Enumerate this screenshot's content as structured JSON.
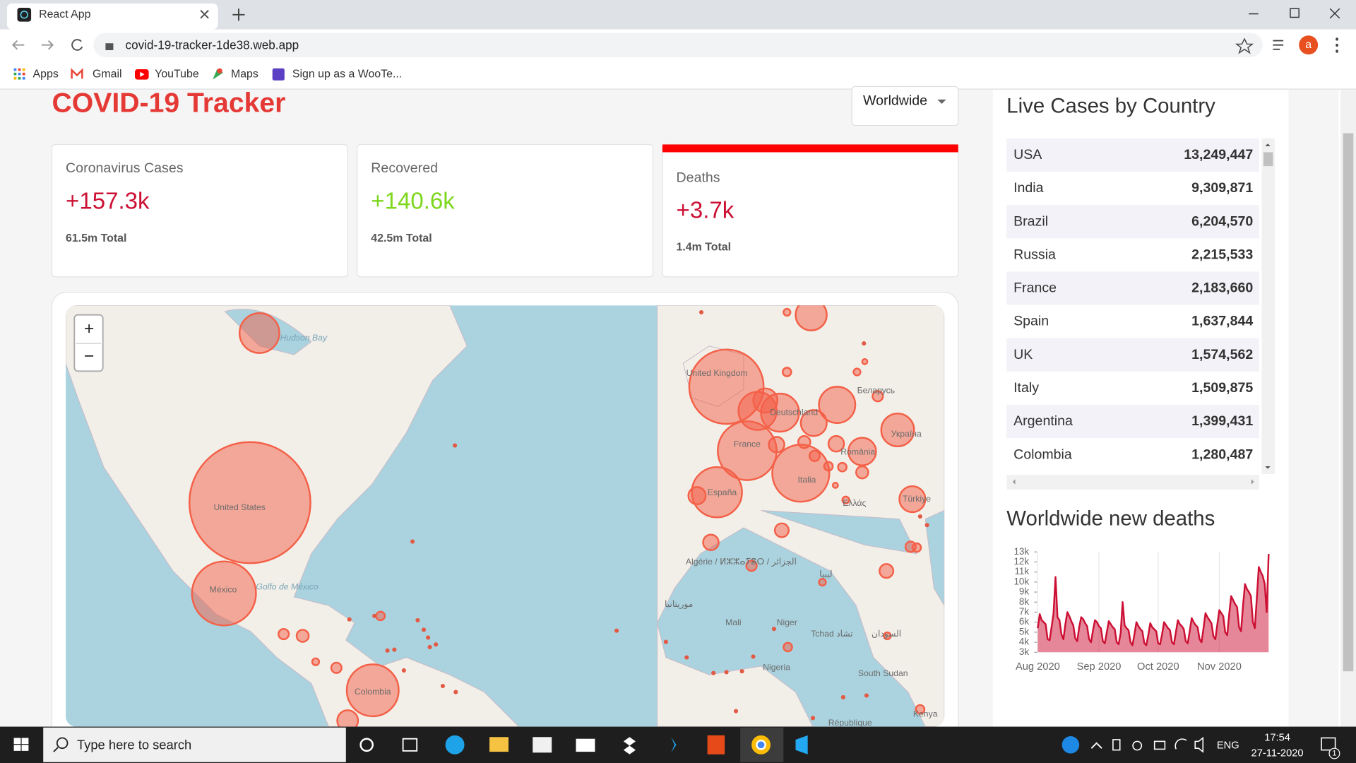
{
  "browser": {
    "tab_title": "React App",
    "url": "covid-19-tracker-1de38.web.app",
    "avatar": "a",
    "bookmarks": [
      "Apps",
      "Gmail",
      "YouTube",
      "Maps",
      "Sign up as a WooTe..."
    ]
  },
  "header": {
    "title": "COVID-19 Tracker",
    "dropdown": "Worldwide"
  },
  "cards": [
    {
      "title": "Coronavirus Cases",
      "value": "+157.3k",
      "total": "61.5m Total"
    },
    {
      "title": "Recovered",
      "value": "+140.6k",
      "total": "42.5m Total"
    },
    {
      "title": "Deaths",
      "value": "+3.7k",
      "total": "1.4m Total"
    }
  ],
  "map": {
    "zoom_in": "+",
    "zoom_out": "−",
    "labels": [
      "Hudson Bay",
      "United Kingdom",
      "Беларусь",
      "Deutschland",
      "France",
      "România",
      "Україна",
      "Italia",
      "España",
      "Ελλάς",
      "Türkiye",
      "United States",
      "México",
      "Golfo de México",
      "Algérie / ⵍⵣⵣⴰⵢⴻⵔ / الجزائر",
      "ليبيا",
      "موريتانيا",
      "Mali",
      "Niger",
      "Tchad تشاد",
      "السودان",
      "Nigeria",
      "South Sudan",
      "Colombia",
      "Kenya",
      "République"
    ]
  },
  "table": {
    "title": "Live Cases by Country",
    "rows": [
      [
        "USA",
        "13,249,447"
      ],
      [
        "India",
        "9,309,871"
      ],
      [
        "Brazil",
        "6,204,570"
      ],
      [
        "Russia",
        "2,215,533"
      ],
      [
        "France",
        "2,183,660"
      ],
      [
        "Spain",
        "1,637,844"
      ],
      [
        "UK",
        "1,574,562"
      ],
      [
        "Italy",
        "1,509,875"
      ],
      [
        "Argentina",
        "1,399,431"
      ],
      [
        "Colombia",
        "1,280,487"
      ]
    ]
  },
  "chart_data": {
    "type": "line",
    "title": "Worldwide new deaths",
    "color": "#cc1034",
    "categories": [
      "Aug 2020",
      null,
      null,
      null,
      null,
      null,
      null,
      null,
      null,
      null,
      null,
      null,
      null,
      null,
      null,
      null,
      null,
      null,
      null,
      null,
      null,
      null,
      null,
      null,
      null,
      null,
      null,
      null,
      null,
      null,
      null,
      "Sep 2020",
      null,
      null,
      null,
      null,
      null,
      null,
      null,
      null,
      null,
      null,
      null,
      null,
      null,
      null,
      null,
      null,
      null,
      null,
      null,
      null,
      null,
      null,
      null,
      null,
      null,
      null,
      null,
      null,
      null,
      "Oct 2020",
      null,
      null,
      null,
      null,
      null,
      null,
      null,
      null,
      null,
      null,
      null,
      null,
      null,
      null,
      null,
      null,
      null,
      null,
      null,
      null,
      null,
      null,
      null,
      null,
      null,
      null,
      null,
      null,
      null,
      null,
      "Nov 2020",
      null,
      null,
      null,
      null,
      null,
      null,
      null,
      null,
      null,
      null,
      null,
      null,
      null,
      null,
      null,
      null,
      null,
      null,
      null,
      null,
      null,
      null,
      null,
      null,
      null
    ],
    "values": [
      5400,
      6800,
      6200,
      6000,
      5800,
      4300,
      4200,
      5500,
      6900,
      10500,
      6500,
      6200,
      4800,
      4300,
      5800,
      7000,
      6600,
      6100,
      5700,
      4400,
      4100,
      5500,
      6500,
      6300,
      5900,
      5600,
      4300,
      4000,
      5200,
      6200,
      6000,
      5600,
      5400,
      4100,
      3900,
      5000,
      6100,
      5800,
      5500,
      5300,
      4000,
      3800,
      4900,
      8000,
      5700,
      5400,
      5200,
      4000,
      3700,
      4800,
      6000,
      5600,
      5300,
      5100,
      3900,
      3700,
      4700,
      5900,
      5500,
      5300,
      5100,
      3900,
      3800,
      4800,
      6000,
      5700,
      5400,
      5200,
      4000,
      3800,
      5000,
      6200,
      5800,
      5600,
      5300,
      4100,
      3900,
      5100,
      6400,
      6000,
      5700,
      5500,
      4300,
      4000,
      5400,
      6900,
      6500,
      6200,
      5900,
      4600,
      4300,
      5800,
      7200,
      6900,
      6600,
      5000,
      4700,
      6800,
      8600,
      8200,
      7800,
      7500,
      5500,
      5100,
      7600,
      9800,
      9300,
      9000,
      8600,
      6000,
      5400,
      8400,
      11500,
      11000,
      10600,
      9800,
      7000,
      12800
    ],
    "ylim": [
      3000,
      13000
    ],
    "yticks": [
      {
        "value": 3000,
        "label": "3k"
      },
      {
        "value": 4000,
        "label": "4k"
      },
      {
        "value": 5000,
        "label": "5k"
      },
      {
        "value": 6000,
        "label": "6k"
      },
      {
        "value": 7000,
        "label": "7k"
      },
      {
        "value": 8000,
        "label": "8k"
      },
      {
        "value": 9000,
        "label": "9k"
      },
      {
        "value": 10000,
        "label": "10k"
      },
      {
        "value": 11000,
        "label": "11k"
      },
      {
        "value": 12000,
        "label": "12k"
      },
      {
        "value": 13000,
        "label": "13k"
      }
    ]
  },
  "taskbar": {
    "search": "Type here to search",
    "language": "ENG",
    "time": "17:54",
    "date": "27-11-2020",
    "notifications": "1"
  }
}
